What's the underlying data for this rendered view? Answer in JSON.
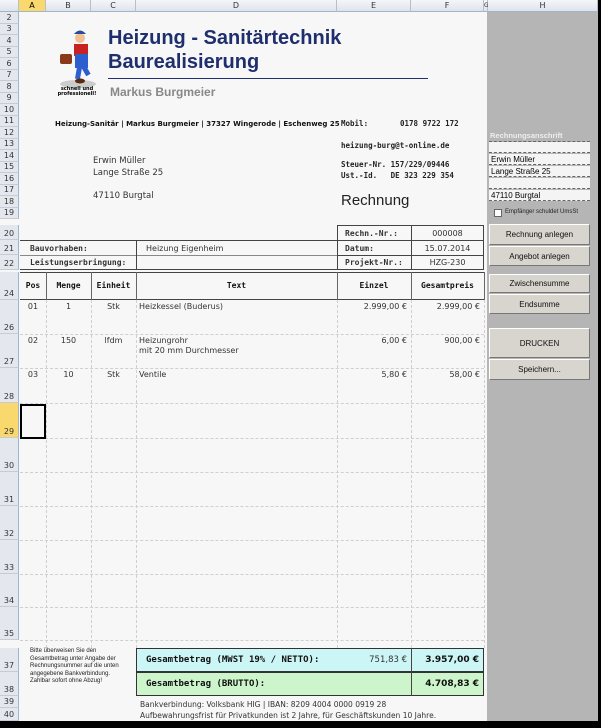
{
  "columns": [
    "A",
    "B",
    "C",
    "D",
    "E",
    "F",
    "G",
    "H"
  ],
  "rows": [
    "2",
    "3",
    "4",
    "5",
    "6",
    "7",
    "8",
    "9",
    "10",
    "11",
    "12",
    "13",
    "14",
    "15",
    "16",
    "17",
    "18",
    "19",
    "20",
    "21",
    "22",
    "24",
    "26",
    "27",
    "28",
    "29",
    "30",
    "31",
    "32",
    "33",
    "34",
    "35",
    "37",
    "38",
    "39",
    "40"
  ],
  "header": {
    "title1": "Heizung  - Sanitärtechnik",
    "title2": "Baurealisierung",
    "owner": "Markus Burgmeier",
    "logo_text": "schnell und professionell!",
    "address_line": "Heizung-Sanitär | Markus Burgmeier | 37327 Wingerode | Eschenweg 25",
    "mobil_label": "Mobil:",
    "mobil": "0178 9722 172",
    "email": "heizung-burg@t-online.de",
    "steuer": "Steuer-Nr. 157/229/09446",
    "ustid": "Ust.-Id.   DE 323 229 354",
    "doc_title": "Rechnung"
  },
  "recipient": {
    "name": "Erwin Müller",
    "street": "Lange Straße 25",
    "city": "47110 Burgtal"
  },
  "meta": {
    "rechn_label": "Rechn.-Nr.:",
    "rechn": "000008",
    "datum_label": "Datum:",
    "datum": "15.07.2014",
    "projekt_label": "Projekt-Nr.:",
    "projekt": "HZG-230",
    "bauvorhaben_label": "Bauvorhaben:",
    "bauvorhaben": "Heizung Eigenheim",
    "leistung_label": "Leistungserbringung:"
  },
  "table": {
    "headers": [
      "Pos",
      "Menge",
      "Einheit",
      "Text",
      "Einzel",
      "Gesamtpreis"
    ],
    "rows": [
      {
        "pos": "01",
        "menge": "1",
        "einheit": "Stk",
        "text": "Heizkessel (Buderus)",
        "text2": "",
        "einzel": "2.999,00 €",
        "gesamt": "2.999,00 €"
      },
      {
        "pos": "02",
        "menge": "150",
        "einheit": "lfdm",
        "text": "Heizungrohr",
        "text2": "mit 20 mm Durchmesser",
        "einzel": "6,00 €",
        "gesamt": "900,00 €"
      },
      {
        "pos": "03",
        "menge": "10",
        "einheit": "Stk",
        "text": "Ventile",
        "text2": "",
        "einzel": "5,80 €",
        "gesamt": "58,00 €"
      }
    ]
  },
  "totals": {
    "netto_label": "Gesamtbetrag (MWST 19% / NETTO):",
    "mwst": "751,83 €",
    "netto": "3.957,00 €",
    "brutto_label": "Gesamtbetrag (BRUTTO):",
    "brutto": "4.708,83 €",
    "netto_bg": "#ccf5f5",
    "brutto_bg": "#ccf5cc"
  },
  "note": "Bitte überweisen Sie den Gesamtbetrag unter Angabe der Rechnungsnummer auf die unten angegebene Bankverbindung. Zahlbar sofort ohne Abzug!",
  "footer": {
    "bank": "Bankverbindung: Volksbank HIG | IBAN: 8209 4004 0000 0919 28",
    "retention": "Aufbewahrungsfrist für Privatkunden ist 2 Jahre, für Geschäftskunden 10 Jahre."
  },
  "panel": {
    "title": "Rechnungsanschrift",
    "addr": [
      "",
      "Erwin Müller",
      "Lange Straße 25",
      "",
      "47110 Burgtal"
    ],
    "checkbox": "Empfänger schuldet UmsSt",
    "checkbox_checked": false,
    "buttons": {
      "rechnung": "Rechnung anlegen",
      "angebot": "Angebot anlegen",
      "zwischensumme": "Zwischensumme",
      "endsumme": "Endsumme",
      "drucken": "DRUCKEN",
      "speichern": "Speichern..."
    }
  }
}
